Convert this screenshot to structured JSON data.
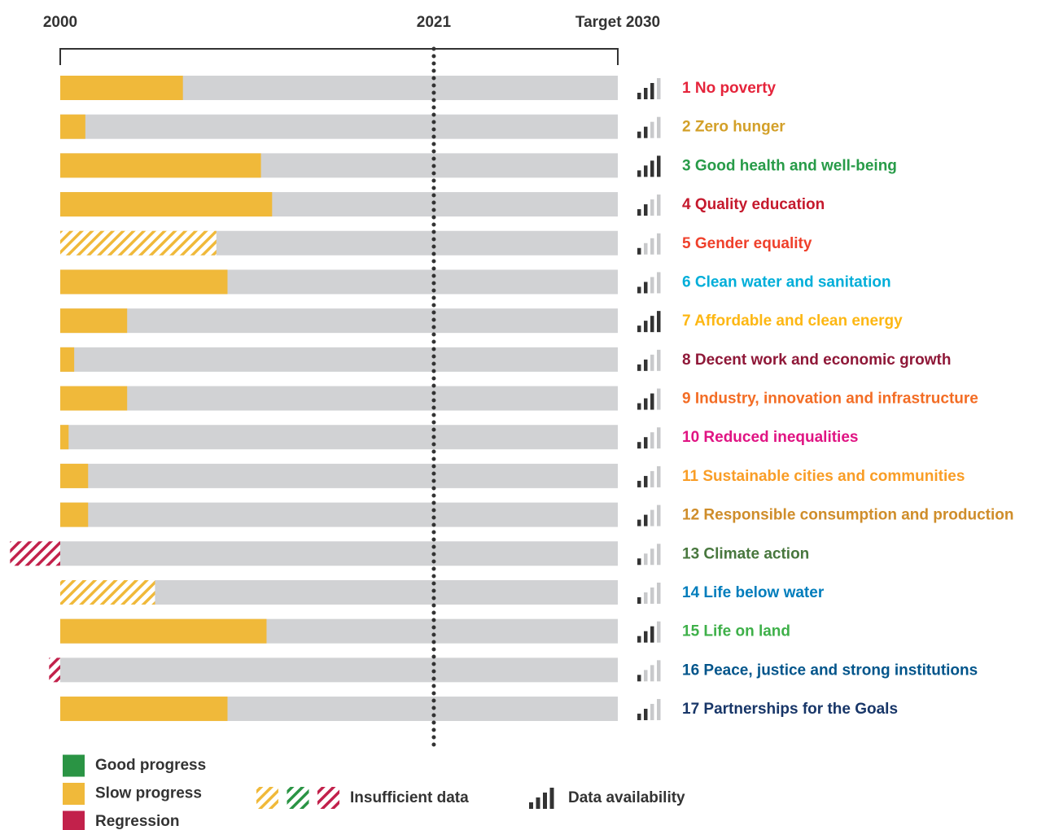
{
  "chart_data": {
    "type": "progress",
    "xlim": [
      0,
      100
    ],
    "xticks": [
      {
        "value": 0,
        "label": "2000"
      },
      {
        "value": 67,
        "label": "2021"
      },
      {
        "value": 100,
        "label": "Target 2030"
      }
    ],
    "track_color": "#d1d2d4",
    "categories": [
      "1 No poverty",
      "2 Zero hunger",
      "3 Good health and well-being",
      "4 Quality education",
      "5 Gender equality",
      "6 Clean water and sanitation",
      "7 Affordable and clean energy",
      "8 Decent work and economic growth",
      "9 Industry, innovation and infrastructure",
      "10 Reduced inequalities",
      "11 Sustainable cities and communities",
      "12 Responsible consumption and production",
      "13 Climate action",
      "14 Life below water",
      "15 Life on land",
      "16 Peace, justice and strong institutions",
      "17 Partnerships for the Goals"
    ],
    "category_colors": [
      "#e5243b",
      "#d3a029",
      "#279b48",
      "#c5192d",
      "#ef402b",
      "#00aed9",
      "#fdb713",
      "#8f1838",
      "#f36d25",
      "#e01483",
      "#f99d26",
      "#cf8d2a",
      "#48773e",
      "#007dbc",
      "#3eb049",
      "#02558b",
      "#183668"
    ],
    "values": [
      22,
      4.5,
      36,
      38,
      28,
      30,
      12,
      2.5,
      12,
      1.5,
      5,
      5,
      -9,
      17,
      37,
      -2,
      30
    ],
    "status": [
      "Slow progress",
      "Slow progress",
      "Slow progress",
      "Slow progress",
      "Slow progress",
      "Slow progress",
      "Slow progress",
      "Slow progress",
      "Slow progress",
      "Slow progress",
      "Slow progress",
      "Slow progress",
      "Regression",
      "Slow progress",
      "Slow progress",
      "Regression",
      "Slow progress"
    ],
    "insufficient_data": [
      false,
      false,
      false,
      false,
      true,
      false,
      false,
      false,
      false,
      false,
      false,
      false,
      true,
      true,
      false,
      true,
      false
    ],
    "availability": [
      3,
      2,
      4,
      2,
      1,
      2,
      4,
      2,
      3,
      2,
      2,
      2,
      1,
      1,
      3,
      1,
      2
    ],
    "availability_max": 4,
    "availability_colors": [
      "#333333",
      "#c8c9cb"
    ],
    "legend": [
      {
        "name": "Good progress",
        "color": "#2a9444"
      },
      {
        "name": "Slow progress",
        "color": "#f0b93a"
      },
      {
        "name": "Regression",
        "color": "#c2214b"
      }
    ],
    "insufficient_label": "Insufficient data",
    "availability_label": "Data availability"
  }
}
